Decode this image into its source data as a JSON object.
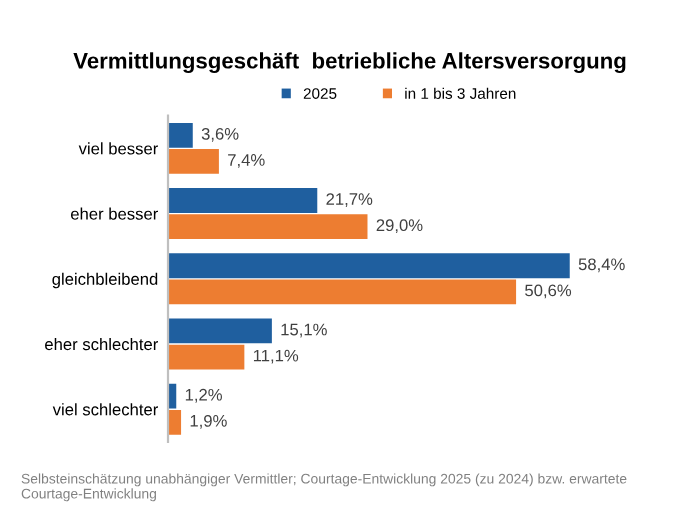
{
  "chart_data": {
    "type": "bar",
    "orientation": "horizontal",
    "title": "Vermittlungsgeschäft  betriebliche Altersversorgung",
    "categories": [
      "viel besser",
      "eher besser",
      "gleichbleibend",
      "eher schlechter",
      "viel schlechter"
    ],
    "series": [
      {
        "name": "2025",
        "color": "#1f5f9f",
        "values": [
          3.6,
          21.7,
          58.4,
          15.1,
          1.2
        ],
        "value_labels": [
          "3,6%",
          "21,7%",
          "58,4%",
          "15,1%",
          "1,2%"
        ]
      },
      {
        "name": "in 1 bis 3 Jahren",
        "color": "#ed7d31",
        "values": [
          7.4,
          29.0,
          50.6,
          11.1,
          1.9
        ],
        "value_labels": [
          "7,4%",
          "29,0%",
          "50,6%",
          "11,1%",
          "1,9%"
        ]
      }
    ],
    "legend": "top",
    "annotations": [
      "Selbsteinschätzung unabhängiger Vermittler; Courtage-Entwicklung 2025 (zu 2024) bzw. erwartete Courtage-Entwicklung"
    ]
  }
}
